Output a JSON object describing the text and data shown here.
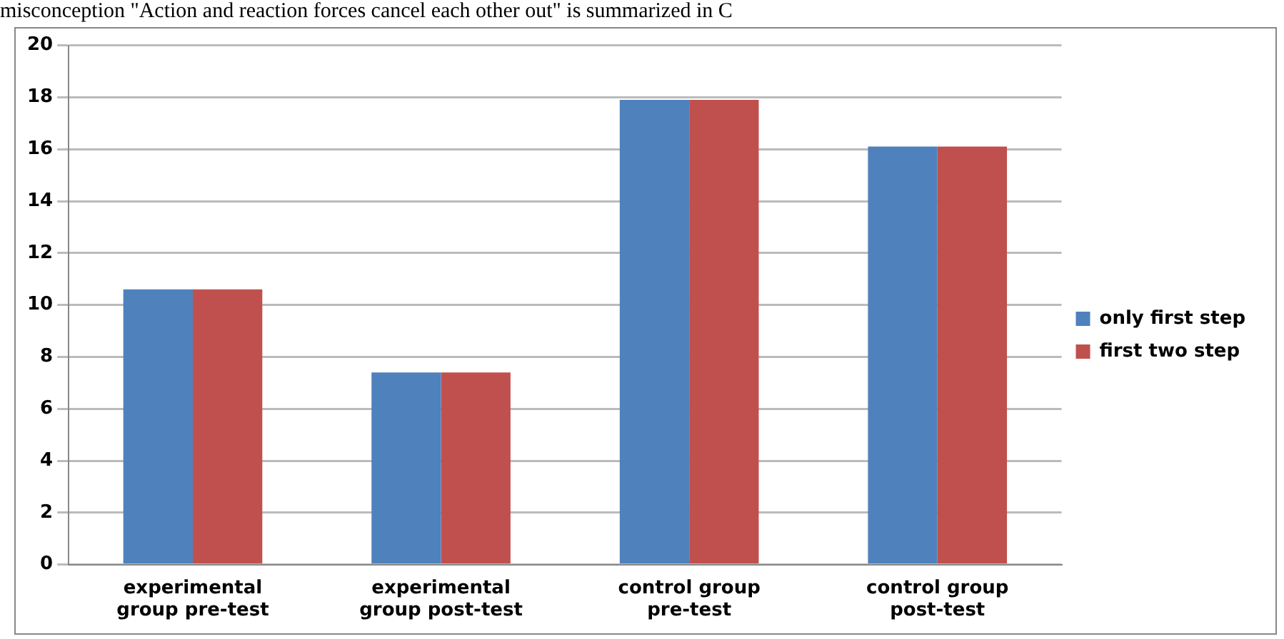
{
  "chart_data": {
    "type": "bar",
    "annotations": [
      "misconception \"Action and reaction forces cancel each other out\" is summarized in C"
    ],
    "categories": [
      "experimental group pre-test",
      "experimental group post-test",
      "control group pre-test",
      "control group post-test"
    ],
    "series": [
      {
        "name": "only first step",
        "color": "#4f81bd",
        "values": [
          10.6,
          7.4,
          17.9,
          16.1
        ]
      },
      {
        "name": "first two step",
        "color": "#c0504d",
        "values": [
          10.6,
          7.4,
          17.9,
          16.1
        ]
      }
    ],
    "ylim": [
      0,
      20
    ],
    "yticks": [
      0,
      2,
      4,
      6,
      8,
      10,
      12,
      14,
      16,
      18,
      20
    ],
    "grid": "y",
    "legend": "right"
  }
}
